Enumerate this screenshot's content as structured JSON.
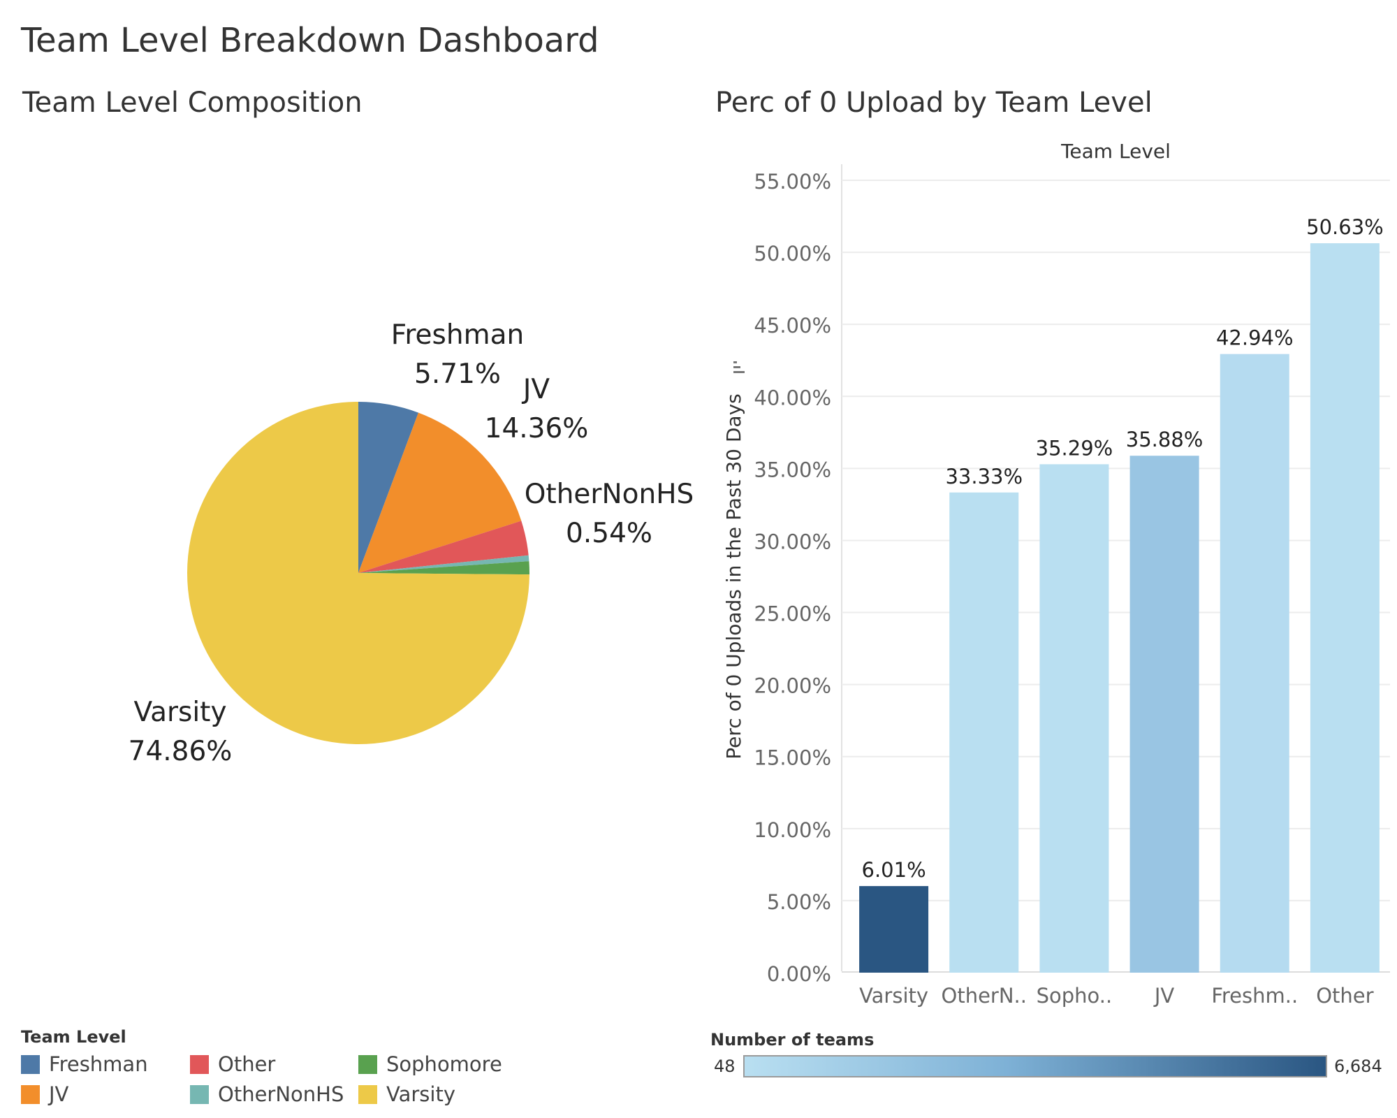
{
  "dashboard": {
    "title": "Team Level Breakdown Dashboard"
  },
  "pie": {
    "title": "Team Level Composition"
  },
  "bar": {
    "title": "Perc of 0 Upload by Team Level",
    "color_scale": {
      "title": "Number of teams",
      "min_label": "48",
      "max_label": "6,684",
      "min_color": "#b9dff1",
      "max_color": "#2a5682"
    }
  },
  "legend": {
    "title": "Team Level",
    "items": [
      {
        "label": "Freshman",
        "color": "#4e79a7"
      },
      {
        "label": "JV",
        "color": "#f28e2b"
      },
      {
        "label": "Other",
        "color": "#e15759"
      },
      {
        "label": "OtherNonHS",
        "color": "#76b7b2"
      },
      {
        "label": "Sophomore",
        "color": "#59a14f"
      },
      {
        "label": "Varsity",
        "color": "#edc948"
      }
    ]
  },
  "chart_data": [
    {
      "type": "pie",
      "title": "Team Level Composition",
      "slices": [
        {
          "name": "Freshman",
          "value": 5.71,
          "color": "#4e79a7",
          "label": "5.71%",
          "labeled": true
        },
        {
          "name": "JV",
          "value": 14.36,
          "color": "#f28e2b",
          "label": "14.36%",
          "labeled": true
        },
        {
          "name": "Other",
          "value": 3.29,
          "color": "#e15759",
          "label": "",
          "labeled": false
        },
        {
          "name": "OtherNonHS",
          "value": 0.54,
          "color": "#76b7b2",
          "label": "0.54%",
          "labeled": true
        },
        {
          "name": "Sophomore",
          "value": 1.24,
          "color": "#59a14f",
          "label": "",
          "labeled": false
        },
        {
          "name": "Varsity",
          "value": 74.86,
          "color": "#edc948",
          "label": "74.86%",
          "labeled": true
        }
      ]
    },
    {
      "type": "bar",
      "title": "Perc of 0 Upload by Team Level",
      "column_header": "Team Level",
      "ylabel": "Perc of 0 Uploads in the Past 30 Days",
      "ylim": [
        0,
        55
      ],
      "yticks": [
        "0.00%",
        "5.00%",
        "10.00%",
        "15.00%",
        "20.00%",
        "25.00%",
        "30.00%",
        "35.00%",
        "40.00%",
        "45.00%",
        "50.00%",
        "55.00%"
      ],
      "categories": [
        "Varsity",
        "OtherN..",
        "Sopho..",
        "JV",
        "Freshm..",
        "Other"
      ],
      "values": [
        6.01,
        33.33,
        35.29,
        35.88,
        42.94,
        50.63
      ],
      "value_labels": [
        "6.01%",
        "33.33%",
        "35.29%",
        "35.88%",
        "42.94%",
        "50.63%"
      ],
      "colors": [
        "#2a5682",
        "#b9dff1",
        "#b9dff1",
        "#99c5e3",
        "#b5dbf0",
        "#b9dff1"
      ],
      "grid": true
    }
  ]
}
